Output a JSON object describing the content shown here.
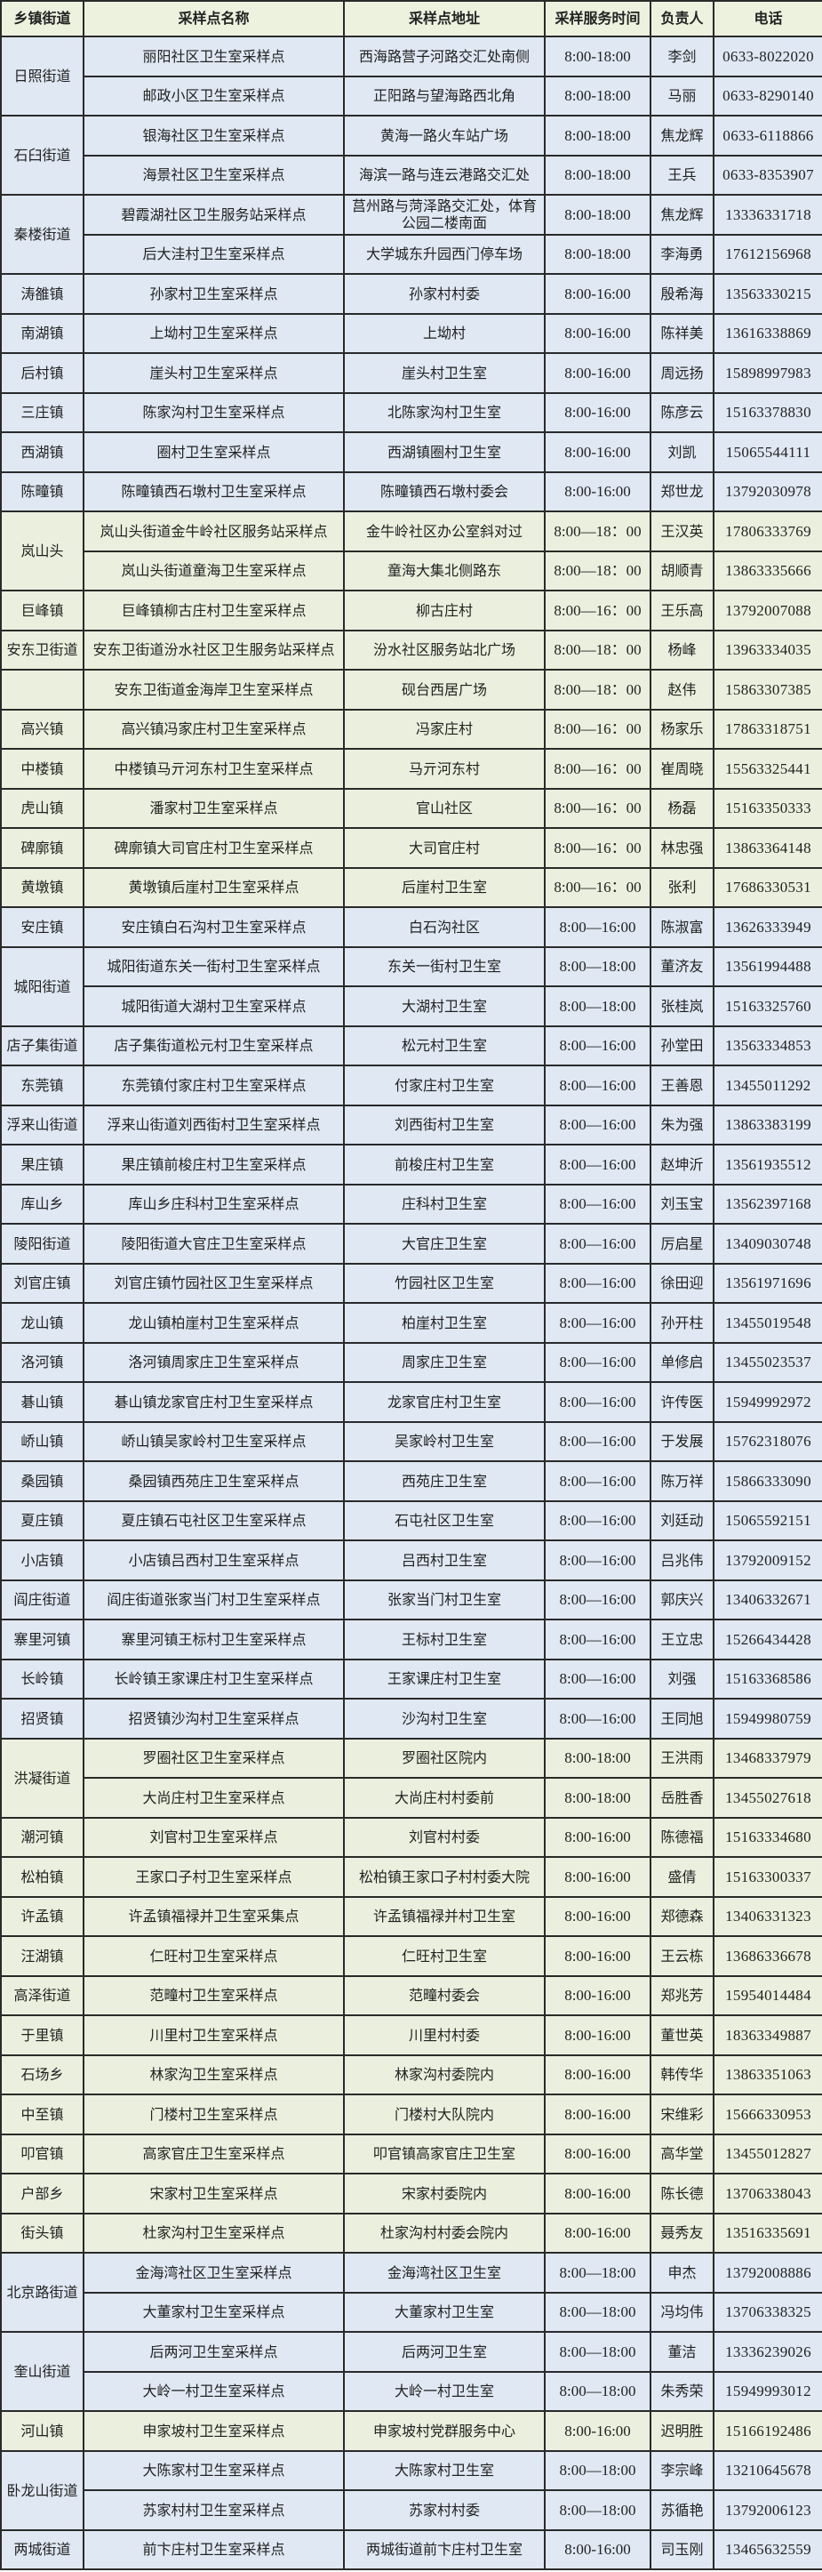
{
  "header": {
    "town": "乡镇街道",
    "name": "采样点名称",
    "address": "采样点地址",
    "time": "采样服务时间",
    "person": "负责人",
    "phone": "电话"
  },
  "colors": {
    "blue": "#dfe8f3",
    "green": "#eaf0dd",
    "header": "#edf2df"
  },
  "groups": [
    {
      "town": "日照街道",
      "theme": "blue",
      "rows": [
        [
          "丽阳社区卫生室采样点",
          "西海路营子河路交汇处南侧",
          "8:00-18:00",
          "李剑",
          "0633-8022020"
        ],
        [
          "邮政小区卫生室采样点",
          "正阳路与望海路西北角",
          "8:00-18:00",
          "马丽",
          "0633-8290140"
        ]
      ]
    },
    {
      "town": "石臼街道",
      "theme": "blue",
      "rows": [
        [
          "银海社区卫生室采样点",
          "黄海一路火车站广场",
          "8:00-18:00",
          "焦龙辉",
          "0633-6118866"
        ],
        [
          "海景社区卫生室采样点",
          "海滨一路与连云港路交汇处",
          "8:00-18:00",
          "王兵",
          "0633-8353907"
        ]
      ]
    },
    {
      "town": "秦楼街道",
      "theme": "blue",
      "rows": [
        [
          "碧霞湖社区卫生服务站采样点",
          "莒州路与菏泽路交汇处，体育公园二楼南面",
          "8:00-18:00",
          "焦龙辉",
          "13336331718"
        ],
        [
          "后大洼村卫生室采样点",
          "大学城东升园西门停车场",
          "8:00-18:00",
          "李海勇",
          "17612156968"
        ]
      ]
    },
    {
      "town": "涛雒镇",
      "theme": "blue",
      "rows": [
        [
          "孙家村卫生室采样点",
          "孙家村村委",
          "8:00-16:00",
          "殷希海",
          "13563330215"
        ]
      ]
    },
    {
      "town": "南湖镇",
      "theme": "blue",
      "rows": [
        [
          "上坳村卫生室采样点",
          "上坳村",
          "8:00-16:00",
          "陈祥美",
          "13616338869"
        ]
      ]
    },
    {
      "town": "后村镇",
      "theme": "blue",
      "rows": [
        [
          "崖头村卫生室采样点",
          "崖头村卫生室",
          "8:00-16:00",
          "周远扬",
          "15898997983"
        ]
      ]
    },
    {
      "town": "三庄镇",
      "theme": "blue",
      "rows": [
        [
          "陈家沟村卫生室采样点",
          "北陈家沟村卫生室",
          "8:00-16:00",
          "陈彦云",
          "15163378830"
        ]
      ]
    },
    {
      "town": "西湖镇",
      "theme": "blue",
      "rows": [
        [
          "圈村卫生室采样点",
          "西湖镇圈村卫生室",
          "8:00-16:00",
          "刘凯",
          "15065544111"
        ]
      ]
    },
    {
      "town": "陈疃镇",
      "theme": "blue",
      "rows": [
        [
          "陈疃镇西石墩村卫生室采样点",
          "陈疃镇西石墩村委会",
          "8:00-16:00",
          "郑世龙",
          "13792030978"
        ]
      ]
    },
    {
      "town": "岚山头",
      "theme": "green",
      "rows": [
        [
          "岚山头街道金牛岭社区服务站采样点",
          "金牛岭社区办公室斜对过",
          "8:00—18：00",
          "王汉英",
          "17806333769"
        ],
        [
          "岚山头街道童海卫生室采样点",
          "童海大集北侧路东",
          "8:00—18：00",
          "胡顺青",
          "13863335666"
        ]
      ]
    },
    {
      "town": "巨峰镇",
      "theme": "green",
      "rows": [
        [
          "巨峰镇柳古庄村卫生室采样点",
          "柳古庄村",
          "8:00—16：00",
          "王乐高",
          "13792007088"
        ]
      ]
    },
    {
      "town": "安东卫街道",
      "theme": "green",
      "rows": [
        [
          "安东卫街道汾水社区卫生服务站采样点",
          "汾水社区服务站北广场",
          "8:00—18：00",
          "杨峰",
          "13963334035"
        ]
      ]
    },
    {
      "town": "",
      "theme": "green",
      "rows": [
        [
          "安东卫街道金海岸卫生室采样点",
          "砚台西居广场",
          "8:00—18：00",
          "赵伟",
          "15863307385"
        ]
      ]
    },
    {
      "town": "高兴镇",
      "theme": "green",
      "rows": [
        [
          "高兴镇冯家庄村卫生室采样点",
          "冯家庄村",
          "8:00—16：00",
          "杨家乐",
          "17863318751"
        ]
      ]
    },
    {
      "town": "中楼镇",
      "theme": "green",
      "rows": [
        [
          "中楼镇马亓河东村卫生室采样点",
          "马亓河东村",
          "8:00—16：00",
          "崔周晓",
          "15563325441"
        ]
      ]
    },
    {
      "town": "虎山镇",
      "theme": "green",
      "rows": [
        [
          "潘家村卫生室采样点",
          "官山社区",
          "8:00—16：00",
          "杨磊",
          "15163350333"
        ]
      ]
    },
    {
      "town": "碑廓镇",
      "theme": "green",
      "rows": [
        [
          "碑廓镇大司官庄村卫生室采样点",
          "大司官庄村",
          "8:00—16：00",
          "林忠强",
          "13863364148"
        ]
      ]
    },
    {
      "town": "黄墩镇",
      "theme": "green",
      "rows": [
        [
          "黄墩镇后崖村卫生室采样点",
          "后崖村卫生室",
          "8:00—16：00",
          "张利",
          "17686330531"
        ]
      ]
    },
    {
      "town": "安庄镇",
      "theme": "blue",
      "rows": [
        [
          "安庄镇白石沟村卫生室采样点",
          "白石沟社区",
          "8:00—16:00",
          "陈淑富",
          "13626333949"
        ]
      ]
    },
    {
      "town": "城阳街道",
      "theme": "blue",
      "rows": [
        [
          "城阳街道东关一街村卫生室采样点",
          "东关一街村卫生室",
          "8:00—18:00",
          "董济友",
          "13561994488"
        ],
        [
          "城阳街道大湖村卫生室采样点",
          "大湖村卫生室",
          "8:00—18:00",
          "张桂岚",
          "15163325760"
        ]
      ]
    },
    {
      "town": "店子集街道",
      "theme": "blue",
      "rows": [
        [
          "店子集街道松元村卫生室采样点",
          "松元村卫生室",
          "8:00—16:00",
          "孙堂田",
          "13563334853"
        ]
      ]
    },
    {
      "town": "东莞镇",
      "theme": "blue",
      "rows": [
        [
          "东莞镇付家庄村卫生室采样点",
          "付家庄村卫生室",
          "8:00—16:00",
          "王善恩",
          "13455011292"
        ]
      ]
    },
    {
      "town": "浮来山街道",
      "theme": "blue",
      "rows": [
        [
          "浮来山街道刘西街村卫生室采样点",
          "刘西街村卫生室",
          "8:00—16:00",
          "朱为强",
          "13863383199"
        ]
      ]
    },
    {
      "town": "果庄镇",
      "theme": "blue",
      "rows": [
        [
          "果庄镇前梭庄村卫生室采样点",
          "前梭庄村卫生室",
          "8:00—16:00",
          "赵坤沂",
          "13561935512"
        ]
      ]
    },
    {
      "town": "库山乡",
      "theme": "blue",
      "rows": [
        [
          "库山乡庄科村卫生室采样点",
          "庄科村卫生室",
          "8:00—16:00",
          "刘玉宝",
          "13562397168"
        ]
      ]
    },
    {
      "town": "陵阳街道",
      "theme": "blue",
      "rows": [
        [
          "陵阳街道大官庄卫生室采样点",
          "大官庄卫生室",
          "8:00—16:00",
          "厉启星",
          "13409030748"
        ]
      ]
    },
    {
      "town": "刘官庄镇",
      "theme": "blue",
      "rows": [
        [
          "刘官庄镇竹园社区卫生室采样点",
          "竹园社区卫生室",
          "8:00—16:00",
          "徐田迎",
          "13561971696"
        ]
      ]
    },
    {
      "town": "龙山镇",
      "theme": "blue",
      "rows": [
        [
          "龙山镇柏崖村卫生室采样点",
          "柏崖村卫生室",
          "8:00—16:00",
          "孙开柱",
          "13455019548"
        ]
      ]
    },
    {
      "town": "洛河镇",
      "theme": "blue",
      "rows": [
        [
          "洛河镇周家庄卫生室采样点",
          "周家庄卫生室",
          "8:00—16:00",
          "单修启",
          "13455023537"
        ]
      ]
    },
    {
      "town": "碁山镇",
      "theme": "blue",
      "rows": [
        [
          "碁山镇龙家官庄村卫生室采样点",
          "龙家官庄村卫生室",
          "8:00—16:00",
          "许传医",
          "15949992972"
        ]
      ]
    },
    {
      "town": "峤山镇",
      "theme": "blue",
      "rows": [
        [
          "峤山镇吴家岭村卫生室采样点",
          "吴家岭村卫生室",
          "8:00—16:00",
          "于发展",
          "15762318076"
        ]
      ]
    },
    {
      "town": "桑园镇",
      "theme": "blue",
      "rows": [
        [
          "桑园镇西苑庄卫生室采样点",
          "西苑庄卫生室",
          "8:00—16:00",
          "陈万祥",
          "15866333090"
        ]
      ]
    },
    {
      "town": "夏庄镇",
      "theme": "blue",
      "rows": [
        [
          "夏庄镇石屯社区卫生室采样点",
          "石屯社区卫生室",
          "8:00—16:00",
          "刘廷动",
          "15065592151"
        ]
      ]
    },
    {
      "town": "小店镇",
      "theme": "blue",
      "rows": [
        [
          "小店镇吕西村卫生室采样点",
          "吕西村卫生室",
          "8:00—16:00",
          "吕兆伟",
          "13792009152"
        ]
      ]
    },
    {
      "town": "阎庄街道",
      "theme": "blue",
      "rows": [
        [
          "阎庄街道张家当门村卫生室采样点",
          "张家当门村卫生室",
          "8:00—16:00",
          "郭庆兴",
          "13406332671"
        ]
      ]
    },
    {
      "town": "寨里河镇",
      "theme": "blue",
      "rows": [
        [
          "寨里河镇王标村卫生室采样点",
          "王标村卫生室",
          "8:00—16:00",
          "王立忠",
          "15266434428"
        ]
      ]
    },
    {
      "town": "长岭镇",
      "theme": "blue",
      "rows": [
        [
          "长岭镇王家课庄村卫生室采样点",
          "王家课庄村卫生室",
          "8:00—16:00",
          "刘强",
          "15163368586"
        ]
      ]
    },
    {
      "town": "招贤镇",
      "theme": "blue",
      "rows": [
        [
          "招贤镇沙沟村卫生室采样点",
          "沙沟村卫生室",
          "8:00—16:00",
          "王同旭",
          "15949980759"
        ]
      ]
    },
    {
      "town": "洪凝街道",
      "theme": "green",
      "rows": [
        [
          "罗圈社区卫生室采样点",
          "罗圈社区院内",
          "8:00-18:00",
          "王洪雨",
          "13468337979"
        ],
        [
          "大尚庄村卫生室采样点",
          "大尚庄村村委前",
          "8:00-18:00",
          "岳胜香",
          "13455027618"
        ]
      ]
    },
    {
      "town": "潮河镇",
      "theme": "green",
      "rows": [
        [
          "刘官村卫生室采样点",
          "刘官村村委",
          "8:00-16:00",
          "陈德福",
          "15163334680"
        ]
      ]
    },
    {
      "town": "松柏镇",
      "theme": "green",
      "rows": [
        [
          "王家口子村卫生室采样点",
          "松柏镇王家口子村村委大院",
          "8:00-16:00",
          "盛倩",
          "15163300337"
        ]
      ]
    },
    {
      "town": "许孟镇",
      "theme": "green",
      "rows": [
        [
          "许孟镇福禄并卫生室采集点",
          "许孟镇福禄并村卫生室",
          "8:00-16:00",
          "郑德森",
          "13406331323"
        ]
      ]
    },
    {
      "town": "汪湖镇",
      "theme": "green",
      "rows": [
        [
          "仁旺村卫生室采样点",
          "仁旺村卫生室",
          "8:00-16:00",
          "王云栋",
          "13686336678"
        ]
      ]
    },
    {
      "town": "高泽街道",
      "theme": "green",
      "rows": [
        [
          "范疃村卫生室采样点",
          "范疃村委会",
          "8:00-16:00",
          "郑兆芳",
          "15954014484"
        ]
      ]
    },
    {
      "town": "于里镇",
      "theme": "green",
      "rows": [
        [
          "川里村卫生室采样点",
          "川里村村委",
          "8:00-16:00",
          "董世英",
          "18363349887"
        ]
      ]
    },
    {
      "town": "石场乡",
      "theme": "green",
      "rows": [
        [
          "林家沟卫生室采样点",
          "林家沟村委院内",
          "8:00-16:00",
          "韩传华",
          "13863351063"
        ]
      ]
    },
    {
      "town": "中至镇",
      "theme": "green",
      "rows": [
        [
          "门楼村卫生室采样点",
          "门楼村大队院内",
          "8:00-16:00",
          "宋维彩",
          "15666330953"
        ]
      ]
    },
    {
      "town": "叩官镇",
      "theme": "green",
      "rows": [
        [
          "高家官庄卫生室采样点",
          "叩官镇高家官庄卫生室",
          "8:00-16:00",
          "高华堂",
          "13455012827"
        ]
      ]
    },
    {
      "town": "户部乡",
      "theme": "green",
      "rows": [
        [
          "宋家村卫生室采样点",
          "宋家村委院内",
          "8:00-16:00",
          "陈长德",
          "13706338043"
        ]
      ]
    },
    {
      "town": "街头镇",
      "theme": "green",
      "rows": [
        [
          "杜家沟村卫生室采样点",
          "杜家沟村村委会院内",
          "8:00-16:00",
          "聂秀友",
          "13516335691"
        ]
      ]
    },
    {
      "town": "北京路街道",
      "theme": "blue",
      "rows": [
        [
          "金海湾社区卫生室采样点",
          "金海湾社区卫生室",
          "8:00—18:00",
          "申杰",
          "13792008886"
        ],
        [
          "大董家村卫生室采样点",
          "大董家村卫生室",
          "8:00—18:00",
          "冯均伟",
          "13706338325"
        ]
      ]
    },
    {
      "town": "奎山街道",
      "theme": "blue",
      "rows": [
        [
          "后两河卫生室采样点",
          "后两河卫生室",
          "8:00—18:00",
          "董洁",
          "13336239026"
        ],
        [
          "大岭一村卫生室采样点",
          "大岭一村卫生室",
          "8:00—18:00",
          "朱秀荣",
          "15949993012"
        ]
      ]
    },
    {
      "town": "河山镇",
      "theme": "green",
      "rows": [
        [
          "申家坡村卫生室采样点",
          "申家坡村党群服务中心",
          "8:00-16:00",
          "迟明胜",
          "15166192486"
        ]
      ]
    },
    {
      "town": "卧龙山街道",
      "theme": "blue",
      "rows": [
        [
          "大陈家村卫生室采样点",
          "大陈家村卫生室",
          "8:00—18:00",
          "李宗峰",
          "13210645678"
        ],
        [
          "苏家村村卫生室采样点",
          "苏家村村委",
          "8:00—18:00",
          "苏循艳",
          "13792006123"
        ]
      ]
    },
    {
      "town": "两城街道",
      "theme": "blue",
      "rows": [
        [
          "前卞庄村卫生室采样点",
          "两城街道前卞庄村卫生室",
          "8:00-16:00",
          "司玉刚",
          "13465632559"
        ]
      ]
    }
  ]
}
